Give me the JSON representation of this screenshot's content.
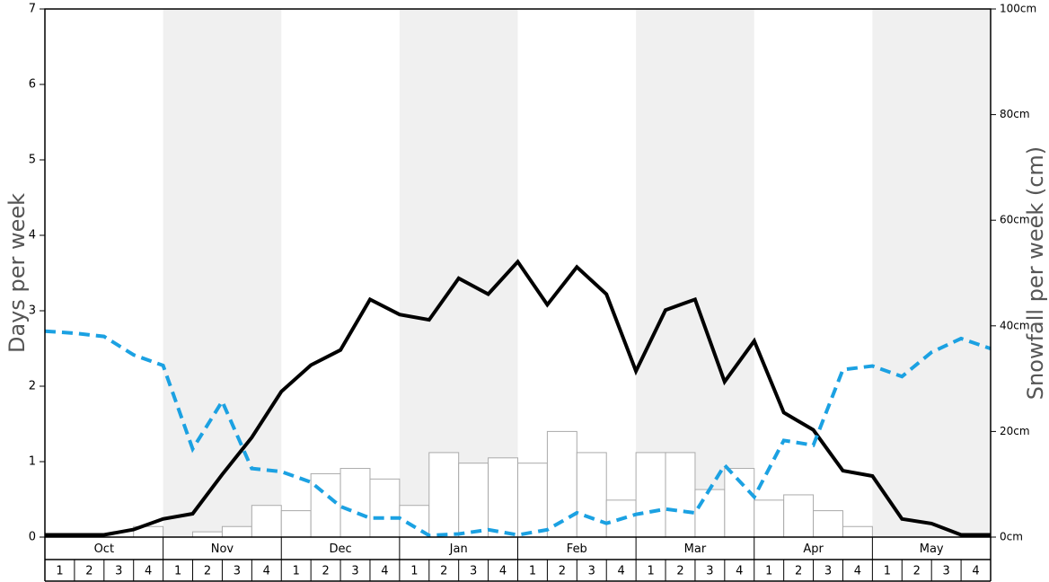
{
  "chart_data": {
    "type": "bar-line",
    "y_label": "Days per week",
    "y2_label": "Snowfall per week (cm)",
    "months": [
      "Oct",
      "Nov",
      "Dec",
      "Jan",
      "Feb",
      "Mar",
      "Apr",
      "May"
    ],
    "week_labels": [
      1,
      2,
      3,
      4
    ],
    "ylim": [
      0,
      7
    ],
    "yticks": [
      0,
      1,
      2,
      3,
      4,
      5,
      6,
      7
    ],
    "y2lim": [
      0,
      100
    ],
    "y2ticks": [
      {
        "value": 0,
        "label": "0cm"
      },
      {
        "value": 20,
        "label": "20cm"
      },
      {
        "value": 40,
        "label": "40cm"
      },
      {
        "value": 60,
        "label": "60cm"
      },
      {
        "value": 80,
        "label": "80cm"
      },
      {
        "value": 100,
        "label": "100cm"
      }
    ],
    "xlim": [
      0,
      32
    ],
    "bars": {
      "color": "#ffffff",
      "edge": "#aaaaaa",
      "values": [
        0,
        0,
        0,
        0.14,
        0,
        0.07,
        0.14,
        0.42,
        0.35,
        0.84,
        0.91,
        0.77,
        0.42,
        1.12,
        0.98,
        1.05,
        0.98,
        1.4,
        1.12,
        0.49,
        1.12,
        1.12,
        0.63,
        0.91,
        0.49,
        0.56,
        0.35,
        0.14,
        0,
        0,
        0,
        0
      ]
    },
    "series": [
      {
        "color": "#000000",
        "dashed": false,
        "x": [
          0,
          1,
          2,
          3,
          4,
          5,
          6,
          7,
          8,
          9,
          10,
          11,
          12,
          13,
          14,
          15,
          16,
          17,
          18,
          19,
          20,
          21,
          22,
          23,
          24,
          25,
          26,
          27,
          28,
          29,
          30,
          31,
          32
        ],
        "values": [
          0.03,
          0.03,
          0.03,
          0.1,
          0.24,
          0.31,
          0.83,
          1.32,
          1.93,
          2.28,
          2.48,
          3.15,
          2.95,
          2.88,
          3.43,
          3.22,
          3.65,
          3.08,
          3.58,
          3.22,
          2.2,
          3.01,
          3.15,
          2.06,
          2.6,
          1.65,
          1.42,
          0.88,
          0.81,
          0.24,
          0.18,
          0.03,
          0.03
        ]
      },
      {
        "color": "#1ba1e2",
        "dashed": true,
        "axis": "y2",
        "x": [
          0,
          1,
          2,
          3,
          4,
          5,
          6,
          7,
          8,
          9,
          10,
          11,
          12,
          13,
          14,
          15,
          16,
          17,
          18,
          19,
          20,
          21,
          22,
          23,
          24,
          25,
          26,
          27,
          28,
          29,
          30,
          31,
          32
        ],
        "values": [
          39,
          38.6,
          38,
          34.5,
          32.5,
          16.7,
          25.7,
          13,
          12.4,
          10.4,
          5.8,
          3.6,
          3.6,
          0.3,
          0.6,
          1.4,
          0.4,
          1.4,
          4.6,
          2.6,
          4.3,
          5.3,
          4.6,
          13.6,
          7.6,
          18.3,
          17.4,
          31.7,
          32.4,
          30.4,
          35,
          37.6,
          35.7
        ]
      }
    ],
    "shade": "#f0f0f0"
  }
}
